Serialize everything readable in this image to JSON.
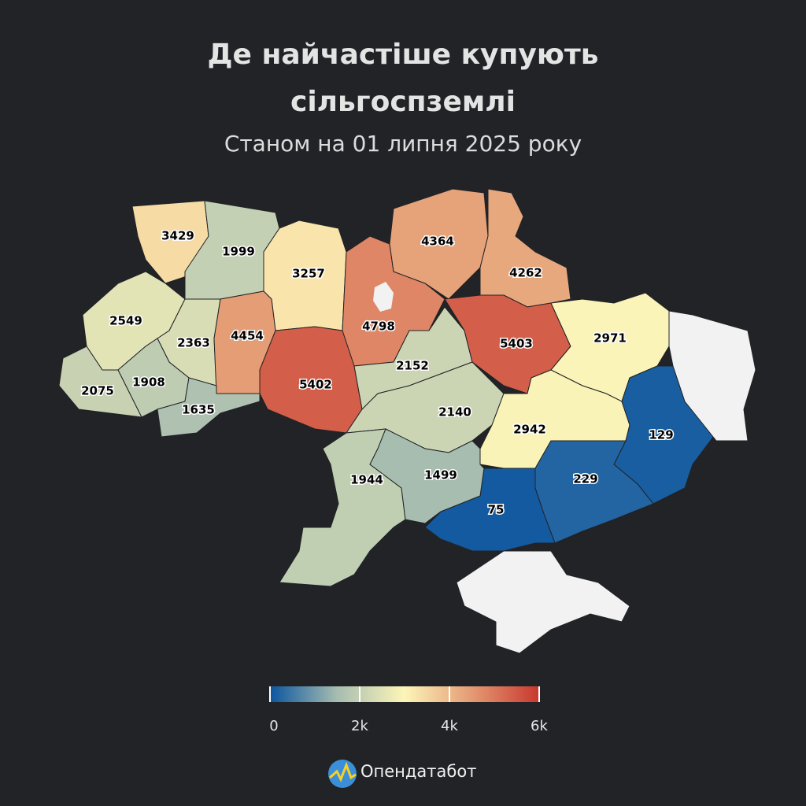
{
  "chart_data": {
    "type": "choropleth",
    "title": "Де найчастіше купують сільгоспземлі",
    "subtitle": "Станом на 01 липня 2025 року",
    "values": [
      3429,
      1999,
      3257,
      4798,
      4364,
      4262,
      2549,
      2363,
      4454,
      5402,
      2075,
      1908,
      1635,
      2152,
      2140,
      5403,
      2971,
      2942,
      129,
      229,
      75,
      1944,
      1499
    ],
    "colorscale": [
      "#0b559f",
      "#a7bdb0",
      "#fdf5b8",
      "#e49a73",
      "#c8372e"
    ],
    "no_data_color": "#f2f2f2",
    "clim": [
      0,
      6000
    ],
    "cticks": [
      0,
      {
        "value": 2000,
        "label": "2k"
      },
      {
        "value": 4000,
        "label": "4k"
      },
      {
        "value": 6000,
        "label": "6k"
      }
    ]
  },
  "brand": "Опендатабот"
}
